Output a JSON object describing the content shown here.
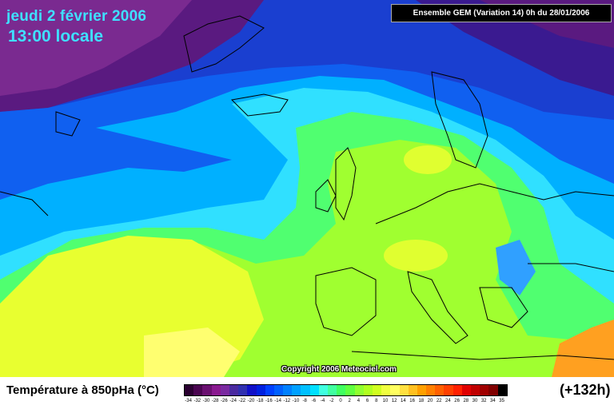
{
  "title": {
    "date": "jeudi 2 février 2006",
    "time": "13:00 locale"
  },
  "model_label": "Ensemble GEM (Variation 14) 0h du 28/01/2006",
  "copyright": "Copyright 2006 Meteociel.com",
  "legend": {
    "label": "Température à 850pHa (°C)",
    "lead_time": "(+132h)",
    "ticks": [
      "-34",
      "-32",
      "-30",
      "-28",
      "-26",
      "-24",
      "-22",
      "-20",
      "-18",
      "-16",
      "-14",
      "-12",
      "-10",
      "-8",
      "-6",
      "-4",
      "-2",
      "0",
      "2",
      "4",
      "6",
      "8",
      "10",
      "12",
      "14",
      "16",
      "18",
      "20",
      "22",
      "24",
      "26",
      "28",
      "30",
      "32",
      "34",
      "35"
    ],
    "colors": [
      "#2a0030",
      "#4a0550",
      "#6a1070",
      "#8a1a90",
      "#7a2aa0",
      "#4a2aa0",
      "#3030b0",
      "#1010c8",
      "#0020e0",
      "#0040ff",
      "#0060ff",
      "#0080ff",
      "#00a0ff",
      "#00c0ff",
      "#00e0ff",
      "#40ffe0",
      "#40ffa0",
      "#40ff60",
      "#60ff40",
      "#90ff30",
      "#b0ff20",
      "#d0ff20",
      "#f0ff40",
      "#ffff60",
      "#ffe040",
      "#ffc020",
      "#ffa000",
      "#ff8000",
      "#ff6000",
      "#ff4000",
      "#ff2000",
      "#e00000",
      "#c00000",
      "#a00000",
      "#800000",
      "#000000"
    ]
  }
}
